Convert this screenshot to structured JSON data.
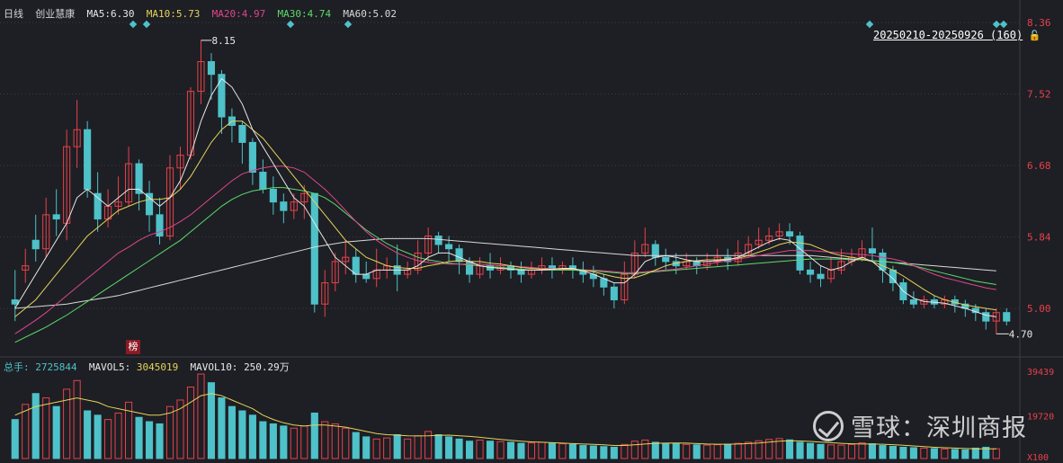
{
  "header": {
    "period": "日线",
    "stock_name": "创业慧康",
    "ma": [
      {
        "label": "MA5:",
        "value": "6.30",
        "color": "#e8e8e8"
      },
      {
        "label": "MA10:",
        "value": "5.73",
        "color": "#e6d35a"
      },
      {
        "label": "MA20:",
        "value": "4.97",
        "color": "#e0458c"
      },
      {
        "label": "MA30:",
        "value": "4.74",
        "color": "#5fd96b"
      },
      {
        "label": "MA60:",
        "value": "5.02",
        "color": "#d9d9d9"
      }
    ]
  },
  "range": {
    "label": "20250210-20250926 (160)",
    "lock_icon": "lock-icon"
  },
  "volume_header": {
    "total_label": "总手:",
    "total_value": "2725844",
    "mavol5_label": "MAVOL5:",
    "mavol5_value": "3045019",
    "mavol10_label": "MAVOL10:",
    "mavol10_value": "250.29万"
  },
  "badge": "榜",
  "watermark": "雪球：深圳商报",
  "colors": {
    "up": "#e8414b",
    "down": "#4ec1c9",
    "bg": "#1d1f24",
    "grid": "#3a3d44",
    "axis_text": "#e8414b"
  },
  "chart_data": {
    "type": "candlestick",
    "price_axis": {
      "ticks": [
        8.36,
        7.52,
        6.68,
        5.84,
        5.0
      ],
      "tick_labels": [
        "8.36",
        "7.52",
        "6.68",
        "5.84",
        "5.00"
      ],
      "ylim": [
        4.45,
        8.36
      ]
    },
    "volume_axis": {
      "tick_labels": [
        "39439",
        "19720",
        "X100"
      ],
      "max": 39439
    },
    "annotations": {
      "high": "8.15",
      "low": "4.70"
    },
    "series_colors": {
      "MA5": "#e8e8e8",
      "MA10": "#e6d35a",
      "MA20": "#e0458c",
      "MA30": "#5fd96b",
      "MA60": "#d9d9d9"
    },
    "ohlc": [
      [
        5.1,
        5.05,
        5.45,
        4.85
      ],
      [
        5.45,
        5.5,
        5.7,
        5.3
      ],
      [
        5.8,
        5.7,
        6.1,
        5.55
      ],
      [
        5.7,
        6.1,
        6.3,
        5.6
      ],
      [
        6.1,
        6.05,
        6.4,
        5.85
      ],
      [
        6.0,
        6.9,
        7.1,
        5.8
      ],
      [
        6.9,
        7.1,
        7.45,
        6.65
      ],
      [
        7.1,
        6.4,
        7.2,
        6.3
      ],
      [
        6.35,
        6.05,
        6.6,
        5.9
      ],
      [
        6.05,
        6.2,
        6.4,
        5.95
      ],
      [
        6.2,
        6.25,
        6.55,
        6.1
      ],
      [
        6.25,
        6.7,
        6.9,
        6.2
      ],
      [
        6.7,
        6.35,
        6.75,
        6.15
      ],
      [
        6.35,
        6.1,
        6.5,
        5.9
      ],
      [
        6.1,
        5.85,
        6.3,
        5.75
      ],
      [
        5.85,
        6.65,
        6.8,
        5.8
      ],
      [
        6.65,
        6.8,
        6.9,
        6.4
      ],
      [
        6.8,
        7.55,
        7.6,
        6.75
      ],
      [
        7.55,
        7.9,
        8.15,
        7.4
      ],
      [
        7.9,
        7.75,
        8.0,
        7.45
      ],
      [
        7.75,
        7.25,
        7.8,
        7.05
      ],
      [
        7.25,
        7.15,
        7.35,
        6.95
      ],
      [
        7.15,
        6.95,
        7.2,
        6.7
      ],
      [
        6.95,
        6.6,
        7.0,
        6.45
      ],
      [
        6.6,
        6.4,
        6.75,
        6.35
      ],
      [
        6.4,
        6.25,
        6.55,
        6.1
      ],
      [
        6.25,
        6.15,
        6.35,
        6.0
      ],
      [
        6.15,
        6.25,
        6.35,
        6.05
      ],
      [
        6.25,
        6.35,
        6.45,
        6.05
      ],
      [
        6.35,
        5.05,
        6.35,
        4.95
      ],
      [
        5.05,
        5.3,
        5.45,
        4.9
      ],
      [
        5.3,
        5.55,
        5.65,
        5.2
      ],
      [
        5.55,
        5.6,
        5.8,
        5.4
      ],
      [
        5.6,
        5.4,
        5.7,
        5.3
      ],
      [
        5.4,
        5.35,
        5.55,
        5.3
      ],
      [
        5.35,
        5.45,
        5.7,
        5.25
      ],
      [
        5.45,
        5.5,
        5.6,
        5.35
      ],
      [
        5.5,
        5.4,
        5.75,
        5.2
      ],
      [
        5.4,
        5.45,
        5.55,
        5.35
      ],
      [
        5.45,
        5.65,
        5.8,
        5.4
      ],
      [
        5.65,
        5.85,
        5.95,
        5.55
      ],
      [
        5.85,
        5.75,
        5.9,
        5.65
      ],
      [
        5.75,
        5.7,
        5.85,
        5.55
      ],
      [
        5.7,
        5.55,
        5.75,
        5.4
      ],
      [
        5.55,
        5.4,
        5.6,
        5.3
      ],
      [
        5.4,
        5.5,
        5.6,
        5.35
      ],
      [
        5.5,
        5.45,
        5.65,
        5.35
      ],
      [
        5.45,
        5.5,
        5.6,
        5.4
      ],
      [
        5.5,
        5.45,
        5.55,
        5.35
      ],
      [
        5.45,
        5.4,
        5.55,
        5.3
      ],
      [
        5.4,
        5.45,
        5.55,
        5.35
      ],
      [
        5.45,
        5.5,
        5.6,
        5.4
      ],
      [
        5.5,
        5.45,
        5.6,
        5.35
      ],
      [
        5.45,
        5.5,
        5.55,
        5.4
      ],
      [
        5.5,
        5.45,
        5.6,
        5.35
      ],
      [
        5.45,
        5.4,
        5.55,
        5.3
      ],
      [
        5.4,
        5.35,
        5.5,
        5.25
      ],
      [
        5.35,
        5.25,
        5.4,
        5.15
      ],
      [
        5.25,
        5.1,
        5.3,
        5.0
      ],
      [
        5.1,
        5.4,
        5.55,
        5.05
      ],
      [
        5.4,
        5.65,
        5.8,
        5.35
      ],
      [
        5.65,
        5.75,
        5.95,
        5.6
      ],
      [
        5.75,
        5.6,
        5.8,
        5.5
      ],
      [
        5.6,
        5.55,
        5.7,
        5.45
      ],
      [
        5.55,
        5.5,
        5.65,
        5.4
      ],
      [
        5.5,
        5.55,
        5.65,
        5.45
      ],
      [
        5.55,
        5.5,
        5.6,
        5.4
      ],
      [
        5.5,
        5.55,
        5.65,
        5.45
      ],
      [
        5.55,
        5.6,
        5.7,
        5.5
      ],
      [
        5.6,
        5.55,
        5.7,
        5.45
      ],
      [
        5.55,
        5.65,
        5.8,
        5.5
      ],
      [
        5.65,
        5.75,
        5.85,
        5.6
      ],
      [
        5.75,
        5.8,
        5.95,
        5.7
      ],
      [
        5.8,
        5.85,
        5.95,
        5.75
      ],
      [
        5.85,
        5.9,
        6.0,
        5.8
      ],
      [
        5.9,
        5.85,
        6.0,
        5.75
      ],
      [
        5.85,
        5.45,
        5.9,
        5.4
      ],
      [
        5.45,
        5.4,
        5.55,
        5.3
      ],
      [
        5.4,
        5.35,
        5.5,
        5.25
      ],
      [
        5.35,
        5.45,
        5.6,
        5.3
      ],
      [
        5.45,
        5.55,
        5.7,
        5.4
      ],
      [
        5.55,
        5.6,
        5.7,
        5.5
      ],
      [
        5.6,
        5.7,
        5.8,
        5.55
      ],
      [
        5.7,
        5.65,
        5.95,
        5.55
      ],
      [
        5.65,
        5.45,
        5.7,
        5.3
      ],
      [
        5.45,
        5.3,
        5.5,
        5.2
      ],
      [
        5.3,
        5.1,
        5.35,
        5.05
      ],
      [
        5.1,
        5.05,
        5.2,
        5.0
      ],
      [
        5.05,
        5.1,
        5.15,
        5.0
      ],
      [
        5.1,
        5.05,
        5.15,
        5.0
      ],
      [
        5.05,
        5.1,
        5.15,
        5.0
      ],
      [
        5.1,
        5.05,
        5.15,
        4.95
      ],
      [
        5.05,
        5.0,
        5.1,
        4.9
      ],
      [
        5.0,
        4.95,
        5.05,
        4.85
      ],
      [
        4.95,
        4.85,
        5.0,
        4.75
      ],
      [
        4.85,
        4.95,
        5.0,
        4.7
      ],
      [
        4.95,
        4.85,
        5.0,
        4.8
      ]
    ],
    "ma5": [
      5.0,
      5.2,
      5.4,
      5.6,
      5.8,
      6.0,
      6.3,
      6.4,
      6.3,
      6.2,
      6.3,
      6.4,
      6.4,
      6.3,
      6.2,
      6.3,
      6.5,
      6.8,
      7.2,
      7.5,
      7.7,
      7.6,
      7.4,
      7.1,
      6.9,
      6.7,
      6.5,
      6.3,
      6.2,
      6.0,
      5.8,
      5.6,
      5.5,
      5.4,
      5.4,
      5.45,
      5.45,
      5.45,
      5.45,
      5.5,
      5.6,
      5.65,
      5.65,
      5.6,
      5.55,
      5.5,
      5.48,
      5.47,
      5.46,
      5.45,
      5.45,
      5.45,
      5.46,
      5.47,
      5.47,
      5.44,
      5.4,
      5.35,
      5.3,
      5.3,
      5.4,
      5.55,
      5.6,
      5.62,
      5.6,
      5.57,
      5.55,
      5.55,
      5.56,
      5.57,
      5.6,
      5.66,
      5.72,
      5.78,
      5.82,
      5.8,
      5.7,
      5.6,
      5.5,
      5.45,
      5.48,
      5.55,
      5.6,
      5.55,
      5.45,
      5.35,
      5.2,
      5.12,
      5.08,
      5.07,
      5.06,
      5.03,
      5.0,
      4.96,
      4.92,
      4.9
    ],
    "ma10": [
      4.9,
      5.0,
      5.1,
      5.25,
      5.4,
      5.55,
      5.7,
      5.85,
      5.95,
      6.05,
      6.15,
      6.2,
      6.25,
      6.28,
      6.28,
      6.3,
      6.4,
      6.55,
      6.75,
      6.95,
      7.1,
      7.2,
      7.2,
      7.1,
      7.0,
      6.85,
      6.7,
      6.55,
      6.4,
      6.25,
      6.1,
      5.95,
      5.8,
      5.7,
      5.6,
      5.55,
      5.5,
      5.48,
      5.47,
      5.47,
      5.5,
      5.52,
      5.55,
      5.56,
      5.55,
      5.55,
      5.53,
      5.52,
      5.5,
      5.48,
      5.47,
      5.46,
      5.46,
      5.46,
      5.46,
      5.45,
      5.43,
      5.4,
      5.37,
      5.35,
      5.36,
      5.4,
      5.45,
      5.5,
      5.53,
      5.55,
      5.56,
      5.57,
      5.57,
      5.58,
      5.59,
      5.62,
      5.66,
      5.7,
      5.75,
      5.78,
      5.77,
      5.75,
      5.7,
      5.65,
      5.62,
      5.6,
      5.58,
      5.55,
      5.5,
      5.45,
      5.38,
      5.3,
      5.22,
      5.15,
      5.1,
      5.07,
      5.04,
      5.02,
      5.0,
      4.98
    ],
    "ma20": [
      4.7,
      4.78,
      4.86,
      4.95,
      5.05,
      5.15,
      5.25,
      5.35,
      5.45,
      5.55,
      5.65,
      5.72,
      5.8,
      5.86,
      5.9,
      5.95,
      6.02,
      6.1,
      6.2,
      6.3,
      6.4,
      6.5,
      6.58,
      6.62,
      6.65,
      6.67,
      6.67,
      6.65,
      6.6,
      6.5,
      6.4,
      6.28,
      6.15,
      6.02,
      5.9,
      5.8,
      5.72,
      5.65,
      5.6,
      5.56,
      5.54,
      5.53,
      5.52,
      5.52,
      5.52,
      5.52,
      5.51,
      5.5,
      5.5,
      5.49,
      5.48,
      5.47,
      5.47,
      5.46,
      5.46,
      5.45,
      5.45,
      5.44,
      5.43,
      5.42,
      5.42,
      5.43,
      5.44,
      5.45,
      5.46,
      5.48,
      5.5,
      5.52,
      5.54,
      5.56,
      5.58,
      5.6,
      5.62,
      5.64,
      5.66,
      5.68,
      5.68,
      5.68,
      5.67,
      5.66,
      5.65,
      5.64,
      5.63,
      5.62,
      5.6,
      5.58,
      5.55,
      5.5,
      5.45,
      5.4,
      5.36,
      5.33,
      5.3,
      5.27,
      5.24,
      5.22
    ],
    "ma30": [
      4.6,
      4.66,
      4.72,
      4.78,
      4.85,
      4.92,
      5.0,
      5.08,
      5.16,
      5.24,
      5.32,
      5.4,
      5.48,
      5.56,
      5.64,
      5.72,
      5.8,
      5.9,
      6.0,
      6.1,
      6.2,
      6.28,
      6.34,
      6.38,
      6.4,
      6.42,
      6.42,
      6.4,
      6.38,
      6.35,
      6.3,
      6.22,
      6.12,
      6.02,
      5.92,
      5.84,
      5.76,
      5.7,
      5.65,
      5.6,
      5.57,
      5.55,
      5.53,
      5.52,
      5.51,
      5.5,
      5.49,
      5.48,
      5.47,
      5.46,
      5.45,
      5.45,
      5.45,
      5.45,
      5.45,
      5.44,
      5.44,
      5.43,
      5.42,
      5.41,
      5.41,
      5.42,
      5.43,
      5.44,
      5.45,
      5.46,
      5.47,
      5.48,
      5.49,
      5.5,
      5.51,
      5.52,
      5.53,
      5.54,
      5.55,
      5.56,
      5.57,
      5.58,
      5.58,
      5.58,
      5.58,
      5.57,
      5.57,
      5.56,
      5.55,
      5.54,
      5.52,
      5.5,
      5.47,
      5.44,
      5.41,
      5.38,
      5.35,
      5.32,
      5.3,
      5.28
    ],
    "ma60": [
      5.0,
      5.01,
      5.02,
      5.03,
      5.04,
      5.05,
      5.07,
      5.09,
      5.11,
      5.13,
      5.15,
      5.18,
      5.21,
      5.24,
      5.27,
      5.3,
      5.33,
      5.36,
      5.39,
      5.42,
      5.45,
      5.48,
      5.51,
      5.54,
      5.57,
      5.6,
      5.63,
      5.66,
      5.69,
      5.72,
      5.74,
      5.76,
      5.78,
      5.79,
      5.8,
      5.81,
      5.82,
      5.82,
      5.82,
      5.82,
      5.82,
      5.81,
      5.8,
      5.79,
      5.78,
      5.77,
      5.76,
      5.75,
      5.74,
      5.73,
      5.72,
      5.71,
      5.7,
      5.69,
      5.68,
      5.67,
      5.66,
      5.65,
      5.64,
      5.63,
      5.62,
      5.62,
      5.62,
      5.62,
      5.62,
      5.62,
      5.62,
      5.62,
      5.62,
      5.62,
      5.62,
      5.62,
      5.62,
      5.62,
      5.62,
      5.62,
      5.62,
      5.62,
      5.61,
      5.6,
      5.59,
      5.58,
      5.57,
      5.56,
      5.55,
      5.54,
      5.53,
      5.52,
      5.51,
      5.5,
      5.49,
      5.48,
      5.47,
      5.46,
      5.45,
      5.44
    ],
    "volume": [
      18000,
      25000,
      30000,
      28000,
      24000,
      32000,
      36000,
      22000,
      20000,
      18000,
      21000,
      26000,
      19000,
      17000,
      16000,
      24000,
      27000,
      33000,
      39000,
      35000,
      28000,
      24000,
      22000,
      20000,
      17000,
      16000,
      15000,
      14000,
      15000,
      21000,
      17000,
      16000,
      14000,
      12000,
      10000,
      9000,
      9500,
      11000,
      9000,
      10500,
      12500,
      11000,
      10000,
      9000,
      8000,
      8500,
      8000,
      7800,
      7500,
      7000,
      7200,
      7500,
      7000,
      6800,
      6500,
      6000,
      5800,
      5500,
      5200,
      6500,
      8000,
      8500,
      7500,
      7000,
      6800,
      6500,
      6300,
      6200,
      6400,
      6600,
      7000,
      7500,
      8200,
      8800,
      9200,
      8600,
      7500,
      7000,
      6500,
      6300,
      6200,
      6500,
      7200,
      6800,
      6000,
      5600,
      5200,
      5000,
      4800,
      4600,
      4400,
      4200,
      4000,
      4800,
      5200,
      4500
    ],
    "mavol": [
      20000,
      22000,
      24000,
      25000,
      26000,
      27000,
      28000,
      27000,
      26000,
      24000,
      23000,
      22000,
      21000,
      20000,
      20000,
      21000,
      23000,
      26000,
      29000,
      30000,
      29000,
      27000,
      25000,
      23000,
      20000,
      18000,
      16500,
      15500,
      15000,
      15500,
      15500,
      15000,
      14500,
      13500,
      12500,
      11500,
      11000,
      10800,
      10500,
      10400,
      10500,
      10700,
      10800,
      10500,
      10200,
      9800,
      9300,
      8800,
      8400,
      8000,
      7700,
      7500,
      7300,
      7100,
      6900,
      6700,
      6500,
      6300,
      6000,
      6000,
      6300,
      6700,
      7000,
      7100,
      7200,
      7100,
      6900,
      6700,
      6600,
      6600,
      6700,
      6900,
      7200,
      7600,
      8000,
      8200,
      8100,
      7900,
      7600,
      7300,
      7000,
      6800,
      6700,
      6700,
      6600,
      6400,
      6100,
      5800,
      5500,
      5200,
      5000,
      4800,
      4600,
      4500,
      4500,
      4500
    ]
  }
}
